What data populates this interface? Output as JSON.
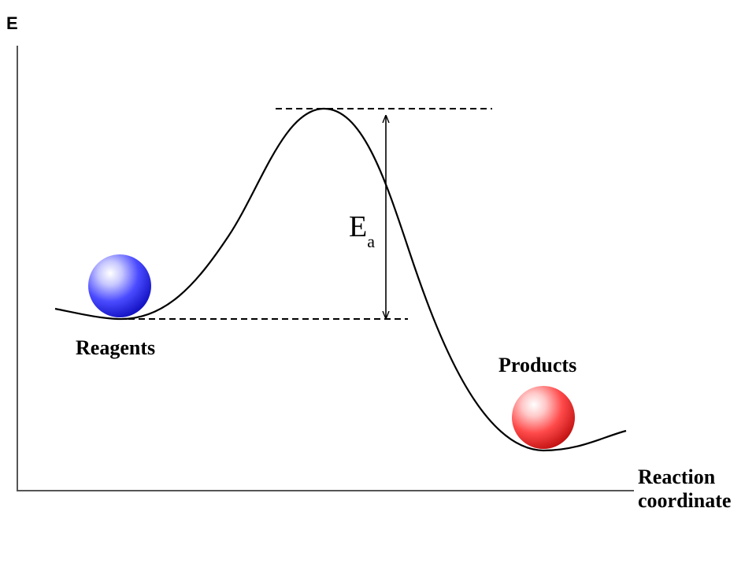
{
  "axes": {
    "y_label": "E",
    "x_label_line1": "Reaction",
    "x_label_line2": "coordinate"
  },
  "activation_energy": {
    "symbol": "E",
    "subscript": "a"
  },
  "states": {
    "reagents": {
      "label": "Reagents",
      "ball_color": "#2f2fff"
    },
    "products": {
      "label": "Products",
      "ball_color": "#ff2f2f"
    }
  }
}
